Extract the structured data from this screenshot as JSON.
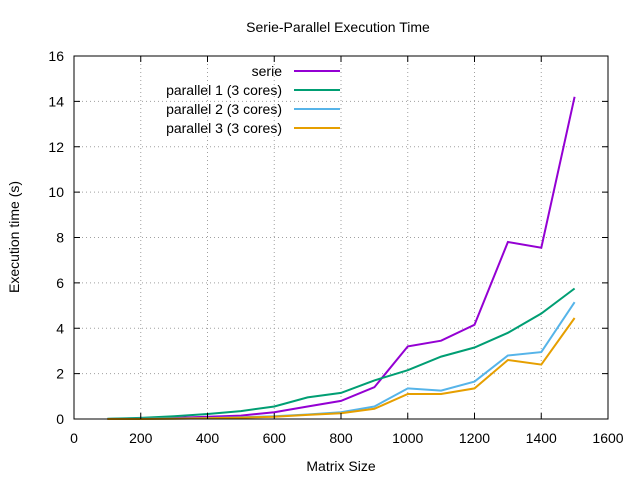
{
  "chart_data": {
    "type": "line",
    "title": "Serie-Parallel Execution Time",
    "xlabel": "Matrix Size",
    "ylabel": "Execution time (s)",
    "xlim": [
      0,
      1600
    ],
    "ylim": [
      0,
      16
    ],
    "xticks": [
      0,
      200,
      400,
      600,
      800,
      1000,
      1200,
      1400,
      1600
    ],
    "yticks": [
      0,
      2,
      4,
      6,
      8,
      10,
      12,
      14,
      16
    ],
    "grid": true,
    "legend_position": "top-left",
    "x": [
      100,
      200,
      300,
      400,
      500,
      600,
      700,
      800,
      900,
      1000,
      1100,
      1200,
      1300,
      1400,
      1500
    ],
    "series": [
      {
        "name": "serie",
        "color": "#9400d3",
        "values": [
          0.0,
          0.02,
          0.05,
          0.1,
          0.15,
          0.3,
          0.55,
          0.8,
          1.4,
          3.2,
          3.45,
          4.15,
          7.8,
          7.55,
          14.2
        ]
      },
      {
        "name": "parallel 1 (3 cores)",
        "color": "#009e73",
        "values": [
          0.01,
          0.05,
          0.12,
          0.22,
          0.35,
          0.55,
          0.95,
          1.15,
          1.7,
          2.15,
          2.75,
          3.15,
          3.8,
          4.65,
          5.75
        ]
      },
      {
        "name": "parallel 2 (3 cores)",
        "color": "#56b4e9",
        "values": [
          0.0,
          0.01,
          0.02,
          0.04,
          0.08,
          0.12,
          0.2,
          0.3,
          0.55,
          1.35,
          1.25,
          1.65,
          2.8,
          2.95,
          5.15
        ]
      },
      {
        "name": "parallel 3 (3 cores)",
        "color": "#e69f00",
        "values": [
          0.0,
          0.0,
          0.01,
          0.03,
          0.06,
          0.1,
          0.18,
          0.25,
          0.45,
          1.1,
          1.1,
          1.35,
          2.6,
          2.4,
          4.45
        ]
      }
    ]
  }
}
